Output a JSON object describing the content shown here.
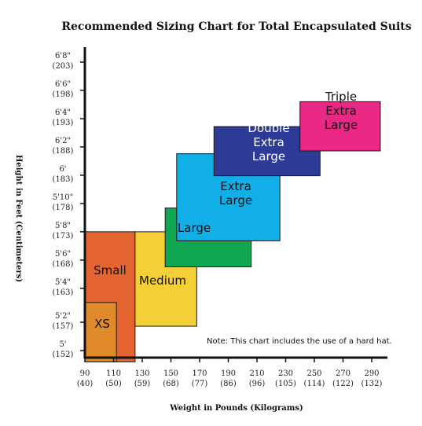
{
  "chart_data": {
    "type": "area",
    "title": "Recommended Sizing Chart for Total Encapsulated Suits",
    "xlabel": "Weight in Pounds (Kilograms)",
    "ylabel": "Height in Feet (Centimeters)",
    "note": "Note: This chart includes the use of a hard hat.",
    "xlim": [
      90,
      300
    ],
    "ylim": [
      150,
      205
    ],
    "x_ticks": [
      {
        "value": 90,
        "primary": "90",
        "secondary": "(40)"
      },
      {
        "value": 110,
        "primary": "110",
        "secondary": "(50)"
      },
      {
        "value": 130,
        "primary": "130",
        "secondary": "(59)"
      },
      {
        "value": 150,
        "primary": "150",
        "secondary": "(68)"
      },
      {
        "value": 170,
        "primary": "170",
        "secondary": "(77)"
      },
      {
        "value": 190,
        "primary": "190",
        "secondary": "(86)"
      },
      {
        "value": 210,
        "primary": "210",
        "secondary": "(96)"
      },
      {
        "value": 230,
        "primary": "230",
        "secondary": "(105)"
      },
      {
        "value": 250,
        "primary": "250",
        "secondary": "(114)"
      },
      {
        "value": 270,
        "primary": "270",
        "secondary": "(122)"
      },
      {
        "value": 290,
        "primary": "290",
        "secondary": "(132)"
      }
    ],
    "y_ticks": [
      {
        "value": 152,
        "primary": "5'",
        "secondary": "(152)"
      },
      {
        "value": 157,
        "primary": "5'2\"",
        "secondary": "(157)"
      },
      {
        "value": 163,
        "primary": "5'4\"",
        "secondary": "(163)"
      },
      {
        "value": 168,
        "primary": "5'6\"",
        "secondary": "(168)"
      },
      {
        "value": 173,
        "primary": "5'8\"",
        "secondary": "(173)"
      },
      {
        "value": 178,
        "primary": "5'10\"",
        "secondary": "(178)"
      },
      {
        "value": 183,
        "primary": "6'",
        "secondary": "(183)"
      },
      {
        "value": 188,
        "primary": "6'2\"",
        "secondary": "(188)"
      },
      {
        "value": 193,
        "primary": "6'4\"",
        "secondary": "(193)"
      },
      {
        "value": 198,
        "primary": "6'6\"",
        "secondary": "(198)"
      },
      {
        "value": 203,
        "primary": "6'8\"",
        "secondary": "(203)"
      }
    ],
    "regions": [
      {
        "name": "Small",
        "lines": [
          "Small"
        ],
        "x": [
          90,
          125
        ],
        "y": [
          150,
          173
        ],
        "color": "#E3642F",
        "text_color": "#111111"
      },
      {
        "name": "XS",
        "lines": [
          "XS"
        ],
        "x": [
          90,
          112
        ],
        "y": [
          150,
          160.5
        ],
        "color": "#E08A2C",
        "text_color": "#111111"
      },
      {
        "name": "Medium",
        "lines": [
          "Medium"
        ],
        "x": [
          125,
          168
        ],
        "y": [
          156.3,
          173
        ],
        "color": "#F4CF37",
        "text_color": "#111111"
      },
      {
        "name": "Large",
        "lines": [
          "Large"
        ],
        "x": [
          146,
          206
        ],
        "y": [
          166.8,
          177.2
        ],
        "color": "#11A651",
        "text_color": "#111111"
      },
      {
        "name": "Extra Large",
        "lines": [
          "Extra",
          "Large"
        ],
        "x": [
          154,
          226
        ],
        "y": [
          171.4,
          186.8
        ],
        "color": "#12AEE8",
        "text_color": "#111111"
      },
      {
        "name": "Double Extra Large",
        "lines": [
          "Double",
          "Extra",
          "Large"
        ],
        "x": [
          180,
          254
        ],
        "y": [
          182.9,
          191.6
        ],
        "color": "#2E3B96",
        "text_color": "#ffffff"
      },
      {
        "name": "Triple Extra Large",
        "lines": [
          "Triple",
          "Extra",
          "Large"
        ],
        "x": [
          240,
          296
        ],
        "y": [
          187.3,
          196
        ],
        "color": "#E92785",
        "text_color": "#111111"
      }
    ]
  }
}
